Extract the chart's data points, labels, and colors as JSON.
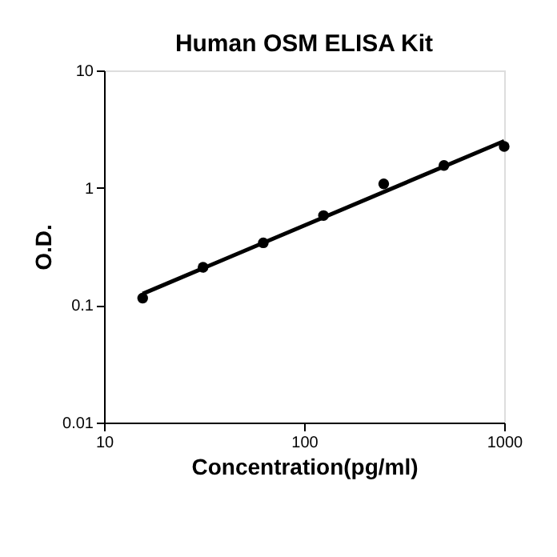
{
  "chart_data": {
    "type": "scatter",
    "title": "Human OSM ELISA Kit",
    "xlabel": "Concentration(pg/ml)",
    "ylabel": "O.D.",
    "log": "xy",
    "grid": false,
    "xlim": [
      10,
      1000
    ],
    "xticks": [
      10,
      100,
      1000
    ],
    "ylim": [
      0.01,
      10
    ],
    "yticks": [
      0.01,
      0.1,
      1,
      10
    ],
    "series": [
      {
        "color": "#000000",
        "marker": "circle",
        "x": [
          15.6,
          31.25,
          62.5,
          125,
          250,
          500,
          1000
        ],
        "values": [
          0.115,
          0.21,
          0.34,
          0.58,
          1.08,
          1.55,
          2.25
        ]
      },
      {
        "type": "line",
        "color": "#000000",
        "line_style": "solid",
        "marker": "none",
        "x": [
          15.6,
          1000
        ],
        "values": [
          0.125,
          2.5
        ]
      }
    ]
  }
}
